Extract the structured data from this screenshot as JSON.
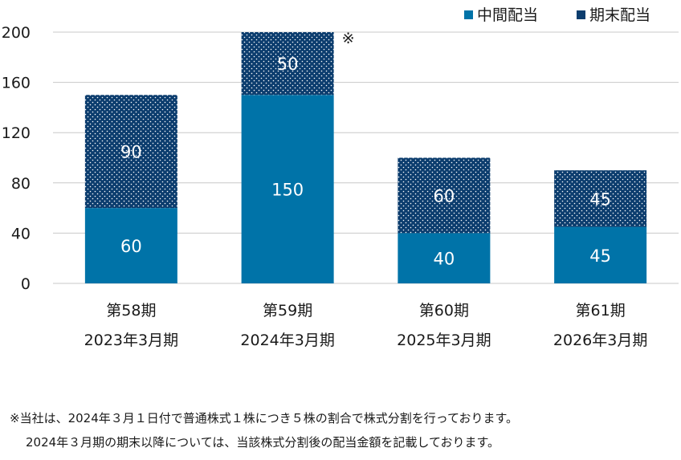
{
  "chart_data": {
    "type": "bar",
    "stacked": true,
    "categories": [
      [
        "第58期",
        "2023年3月期"
      ],
      [
        "第59期",
        "2024年3月期"
      ],
      [
        "第60期",
        "2025年3月期"
      ],
      [
        "第61期",
        "2026年3月期"
      ]
    ],
    "series": [
      {
        "name": "中間配当",
        "values": [
          60,
          150,
          40,
          45
        ],
        "color": "#0073a8",
        "pattern": "solid"
      },
      {
        "name": "期末配当",
        "values": [
          90,
          50,
          60,
          45
        ],
        "color": "#0c3d6e",
        "pattern": "dotted"
      }
    ],
    "ylim": [
      0,
      200
    ],
    "yticks": [
      "0",
      "40",
      "80",
      "120",
      "160",
      "200"
    ],
    "grid": true,
    "legend_position": "top-right",
    "annotation": {
      "text": "※",
      "category_index": 1
    }
  },
  "notes": [
    "※当社は、2024年３月１日付で普通株式１株につき５株の割合で株式分割を行っております。",
    "2024年３月期の期末以降については、当該株式分割後の配当金額を記載しております。"
  ]
}
